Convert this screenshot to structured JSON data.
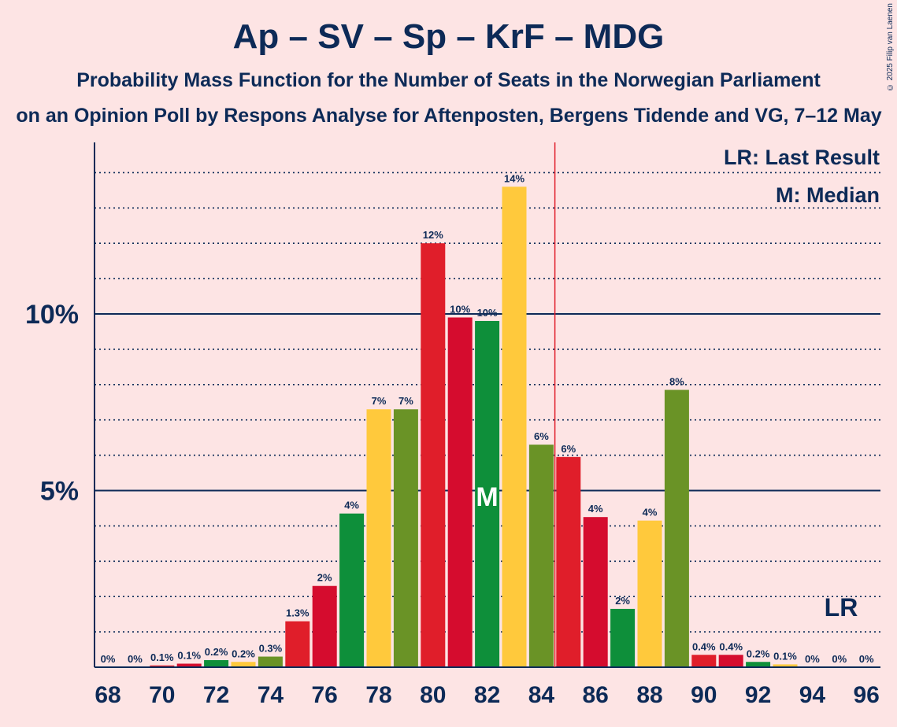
{
  "chart_data": {
    "type": "bar",
    "title": "Ap – SV – Sp – KrF – MDG",
    "subtitle": "Probability Mass Function for the Number of Seats in the Norwegian Parliament",
    "subtitle2": "on an Opinion Poll by Respons Analyse for Aftenposten, Bergens Tidende and VG, 7–12 May",
    "copyright": "© 2025 Filip van Laenen",
    "x": [
      68,
      69,
      70,
      71,
      72,
      73,
      74,
      75,
      76,
      77,
      78,
      79,
      80,
      81,
      82,
      83,
      84,
      85,
      86,
      87,
      88,
      89,
      90,
      91,
      92,
      93,
      94,
      95,
      96
    ],
    "values": [
      0,
      0,
      0.05,
      0.1,
      0.2,
      0.15,
      0.3,
      1.3,
      2.3,
      4.35,
      7.3,
      7.3,
      12.0,
      9.9,
      9.8,
      13.6,
      6.3,
      5.95,
      4.25,
      1.65,
      4.15,
      7.85,
      0.35,
      0.35,
      0.15,
      0.08,
      0,
      0,
      0
    ],
    "labels": [
      "0%",
      "0%",
      "0.1%",
      "0.1%",
      "0.2%",
      "0.2%",
      "0.3%",
      "1.3%",
      "2%",
      "4%",
      "7%",
      "7%",
      "12%",
      "10%",
      "10%",
      "14%",
      "6%",
      "6%",
      "4%",
      "2%",
      "4%",
      "8%",
      "0.4%",
      "0.4%",
      "0.2%",
      "0.1%",
      "0%",
      "0%",
      "0%"
    ],
    "colors": [
      "#e01e2a",
      "#e01e2a",
      "#e01e2a",
      "#d50c2e",
      "#0e8f3a",
      "#ffc93c",
      "#6a9326",
      "#e01e2a",
      "#d50c2e",
      "#0e8f3a",
      "#ffc93c",
      "#6a9326",
      "#e01e2a",
      "#d50c2e",
      "#0e8f3a",
      "#ffc93c",
      "#6a9326",
      "#e01e2a",
      "#d50c2e",
      "#0e8f3a",
      "#ffc93c",
      "#6a9326",
      "#e01e2a",
      "#d50c2e",
      "#0e8f3a",
      "#ffc93c",
      "#6a9326",
      "#e01e2a",
      "#d50c2e"
    ],
    "x_tick_labels": [
      "68",
      "70",
      "72",
      "74",
      "76",
      "78",
      "80",
      "82",
      "84",
      "86",
      "88",
      "90",
      "92",
      "94",
      "96"
    ],
    "y_tick_labels": [
      "5%",
      "10%"
    ],
    "y_ticks": [
      5,
      10
    ],
    "ylim": [
      0,
      14.8
    ],
    "median": 82,
    "median_label": "M",
    "last_result": 85,
    "lr_label": "LR",
    "legend": [
      "LR: Last Result",
      "M: Median"
    ],
    "grid": true
  }
}
